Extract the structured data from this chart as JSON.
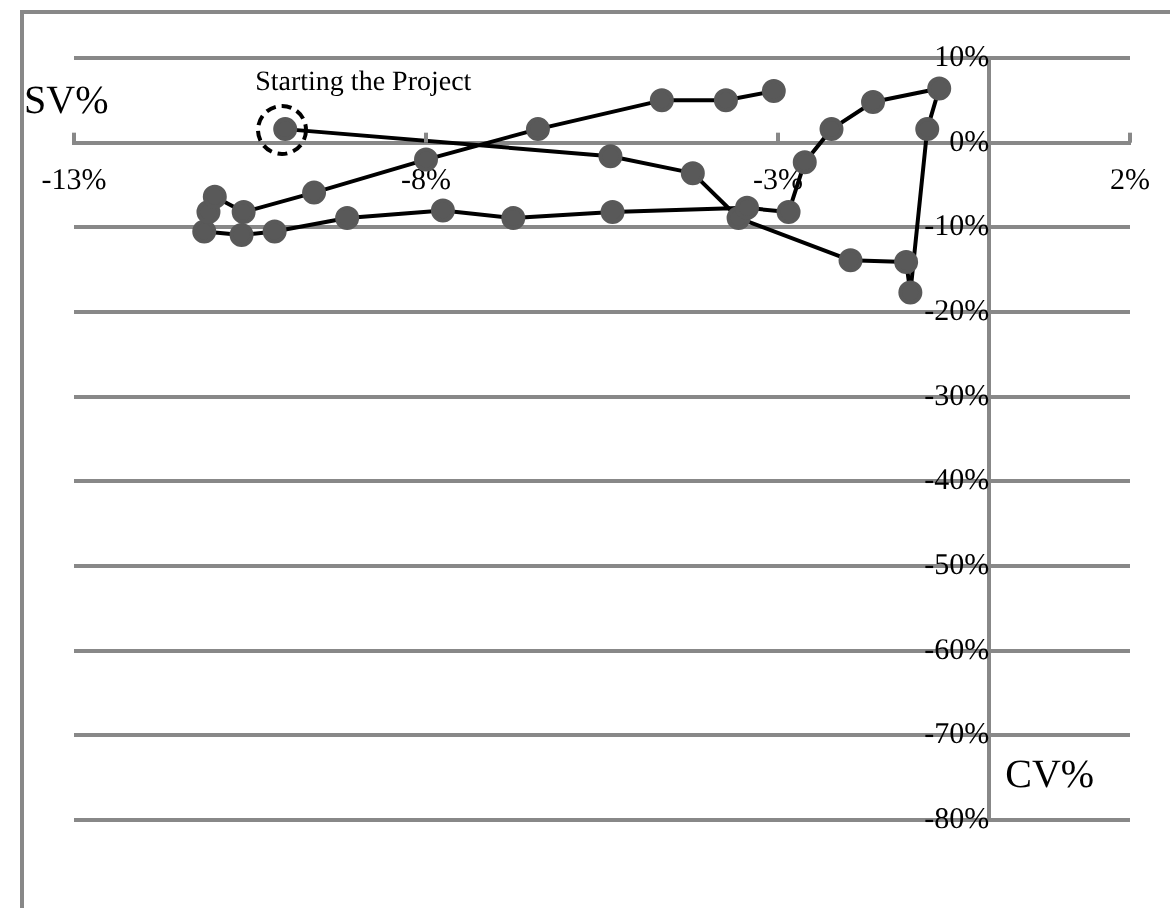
{
  "chart_data": {
    "type": "line",
    "xlabel": "CV%",
    "ylabel": "SV%",
    "annotations": [
      {
        "text": "Starting the Project",
        "x": -10.0,
        "y": 1.6
      }
    ],
    "x": [
      -10.0,
      -5.38,
      -4.21,
      -3.56,
      -1.97,
      -1.18,
      -1.12,
      -0.88,
      -0.71,
      -1.65,
      -2.24,
      -2.62,
      -2.85,
      -3.44,
      -5.35,
      -6.76,
      -7.76,
      -9.12,
      -10.15,
      -10.62,
      -11.15,
      -11.09,
      -11.0,
      -10.59,
      -9.59,
      -8.0,
      -6.41,
      -4.65,
      -3.74,
      -3.06
    ],
    "series": [
      {
        "color": "#595959",
        "values": [
          1.6,
          -1.6,
          -3.6,
          -8.9,
          -13.9,
          -14.1,
          -17.7,
          1.6,
          6.4,
          4.8,
          1.6,
          -2.3,
          -8.2,
          -7.7,
          -8.2,
          -8.9,
          -8.0,
          -8.9,
          -10.5,
          -10.9,
          -10.5,
          -8.2,
          -6.4,
          -8.2,
          -5.9,
          -2.0,
          1.6,
          5.0,
          5.0,
          6.1
        ]
      }
    ],
    "xlim": [
      -13,
      2
    ],
    "xticks": [
      {
        "value": -13,
        "label": "-13%"
      },
      {
        "value": -8,
        "label": "-8%"
      },
      {
        "value": -3,
        "label": "-3%"
      },
      {
        "value": 2,
        "label": "2%"
      }
    ],
    "ylim": [
      -80,
      10
    ],
    "yticks": [
      {
        "value": -80,
        "label": "-80%"
      },
      {
        "value": -70,
        "label": "-70%"
      },
      {
        "value": -60,
        "label": "-60%"
      },
      {
        "value": -50,
        "label": "-50%"
      },
      {
        "value": -40,
        "label": "-40%"
      },
      {
        "value": -30,
        "label": "-30%"
      },
      {
        "value": -20,
        "label": "-20%"
      },
      {
        "value": -10,
        "label": "-10%"
      },
      {
        "value": 0,
        "label": "0%"
      },
      {
        "value": 10,
        "label": "10%"
      }
    ],
    "grid": "y",
    "legend": false,
    "marker": "circle",
    "line_style": "solid"
  }
}
